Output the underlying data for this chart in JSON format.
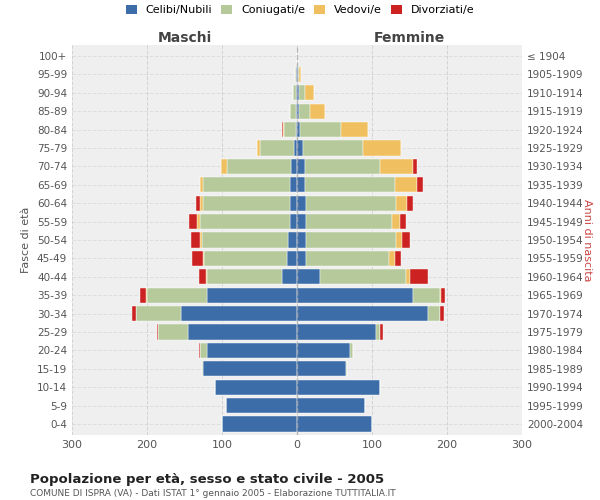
{
  "age_groups": [
    "0-4",
    "5-9",
    "10-14",
    "15-19",
    "20-24",
    "25-29",
    "30-34",
    "35-39",
    "40-44",
    "45-49",
    "50-54",
    "55-59",
    "60-64",
    "65-69",
    "70-74",
    "75-79",
    "80-84",
    "85-89",
    "90-94",
    "95-99",
    "100+"
  ],
  "birth_years": [
    "2000-2004",
    "1995-1999",
    "1990-1994",
    "1985-1989",
    "1980-1984",
    "1975-1979",
    "1970-1974",
    "1965-1969",
    "1960-1964",
    "1955-1959",
    "1950-1954",
    "1945-1949",
    "1940-1944",
    "1935-1939",
    "1930-1934",
    "1925-1929",
    "1920-1924",
    "1915-1919",
    "1910-1914",
    "1905-1909",
    "≤ 1904"
  ],
  "males": {
    "celibi": [
      100,
      95,
      110,
      125,
      120,
      145,
      155,
      120,
      20,
      14,
      12,
      10,
      10,
      10,
      8,
      4,
      2,
      1,
      1,
      1,
      0
    ],
    "coniugati": [
      0,
      0,
      0,
      2,
      10,
      40,
      60,
      80,
      100,
      110,
      115,
      120,
      115,
      115,
      85,
      45,
      15,
      8,
      5,
      2,
      0
    ],
    "vedovi": [
      0,
      0,
      0,
      0,
      0,
      0,
      0,
      1,
      1,
      1,
      2,
      4,
      5,
      5,
      8,
      5,
      2,
      0,
      0,
      0,
      0
    ],
    "divorziati": [
      0,
      0,
      0,
      0,
      1,
      2,
      5,
      8,
      10,
      15,
      12,
      10,
      5,
      0,
      0,
      0,
      1,
      0,
      0,
      0,
      0
    ]
  },
  "females": {
    "nubili": [
      100,
      90,
      110,
      65,
      70,
      105,
      175,
      155,
      30,
      12,
      12,
      12,
      12,
      10,
      10,
      8,
      4,
      2,
      2,
      1,
      0
    ],
    "coniugate": [
      0,
      0,
      0,
      2,
      5,
      5,
      15,
      35,
      115,
      110,
      120,
      115,
      120,
      120,
      100,
      80,
      55,
      15,
      8,
      2,
      1
    ],
    "vedove": [
      0,
      0,
      0,
      0,
      0,
      1,
      1,
      2,
      5,
      8,
      8,
      10,
      15,
      30,
      45,
      50,
      35,
      20,
      12,
      2,
      0
    ],
    "divorziate": [
      0,
      0,
      0,
      0,
      0,
      3,
      5,
      5,
      25,
      8,
      10,
      8,
      8,
      8,
      5,
      0,
      0,
      0,
      0,
      0,
      0
    ]
  },
  "colors": {
    "celibi": "#3d6da8",
    "coniugati": "#b5c99a",
    "vedovi": "#f0c060",
    "divorziati": "#cc2222"
  },
  "xlim": 300,
  "title": "Popolazione per età, sesso e stato civile - 2005",
  "subtitle": "COMUNE DI ISPRA (VA) - Dati ISTAT 1° gennaio 2005 - Elaborazione TUTTITALIA.IT",
  "ylabel_left": "Fasce di età",
  "ylabel_right": "Anni di nascita",
  "xlabel_left": "Maschi",
  "xlabel_right": "Femmine",
  "bg_color": "#ffffff",
  "grid_color": "#cccccc"
}
